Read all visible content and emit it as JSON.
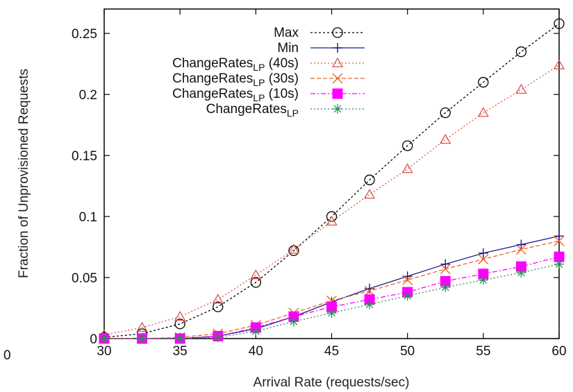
{
  "chart_data": {
    "type": "line",
    "xlabel": "Arrival Rate (requests/sec)",
    "ylabel": "Fraction of Unprovisioned Requests",
    "xlim": [
      30,
      60
    ],
    "ylim": [
      0,
      0.27
    ],
    "x_ticks": [
      "30",
      "35",
      "40",
      "45",
      "50",
      "55",
      "60"
    ],
    "y_ticks": [
      "0",
      "0.05",
      "0.1",
      "0.15",
      "0.2",
      "0.25"
    ],
    "stray_left_tick_label": "0",
    "grid": false,
    "legend_position": "top-center",
    "x": [
      30,
      32.5,
      35,
      37.5,
      40,
      42.5,
      45,
      47.5,
      50,
      52.5,
      55,
      57.5,
      60
    ],
    "series": [
      {
        "name": "Max",
        "legend": {
          "main": "Max",
          "sub": "",
          "suffix": ""
        },
        "color": "#000000",
        "dash": "3,3",
        "marker": "circle",
        "values": [
          0.001,
          0.004,
          0.012,
          0.026,
          0.046,
          0.072,
          0.1,
          0.13,
          0.158,
          0.185,
          0.21,
          0.235,
          0.258
        ]
      },
      {
        "name": "Min",
        "legend": {
          "main": "Min",
          "sub": "",
          "suffix": ""
        },
        "color": "#1a1a8c",
        "dash": "",
        "marker": "plus",
        "values": [
          0.0,
          0.0,
          0.0,
          0.002,
          0.008,
          0.018,
          0.03,
          0.041,
          0.051,
          0.061,
          0.07,
          0.077,
          0.084
        ]
      },
      {
        "name": "ChangeRatesLP (40s)",
        "legend": {
          "main": "ChangeRates",
          "sub": "LP",
          "suffix": " (40s)"
        },
        "color": "#d9534f",
        "dash": "2,3",
        "marker": "triangle",
        "values": [
          0.003,
          0.009,
          0.018,
          0.032,
          0.052,
          0.073,
          0.096,
          0.118,
          0.139,
          0.163,
          0.185,
          0.204,
          0.224
        ]
      },
      {
        "name": "ChangeRatesLP (30s)",
        "legend": {
          "main": "ChangeRates",
          "sub": "LP",
          "suffix": " (30s)"
        },
        "color": "#e8672a",
        "dash": "6,3",
        "marker": "cross",
        "values": [
          0.0,
          0.0,
          0.001,
          0.004,
          0.011,
          0.021,
          0.031,
          0.039,
          0.048,
          0.057,
          0.065,
          0.073,
          0.08
        ]
      },
      {
        "name": "ChangeRatesLP (10s)",
        "legend": {
          "main": "ChangeRates",
          "sub": "LP",
          "suffix": " (10s)"
        },
        "color": "#ff00ff",
        "dash": "7,3,2,3",
        "marker": "square",
        "values": [
          0.0,
          0.0,
          0.0,
          0.002,
          0.009,
          0.018,
          0.026,
          0.032,
          0.038,
          0.047,
          0.053,
          0.059,
          0.067
        ]
      },
      {
        "name": "ChangeRatesLP",
        "legend": {
          "main": "ChangeRates",
          "sub": "LP",
          "suffix": ""
        },
        "color": "#2e8b57",
        "dash": "2,3",
        "marker": "star",
        "values": [
          0.0,
          0.0,
          0.0,
          0.001,
          0.006,
          0.014,
          0.021,
          0.028,
          0.035,
          0.042,
          0.048,
          0.054,
          0.061
        ]
      }
    ]
  }
}
